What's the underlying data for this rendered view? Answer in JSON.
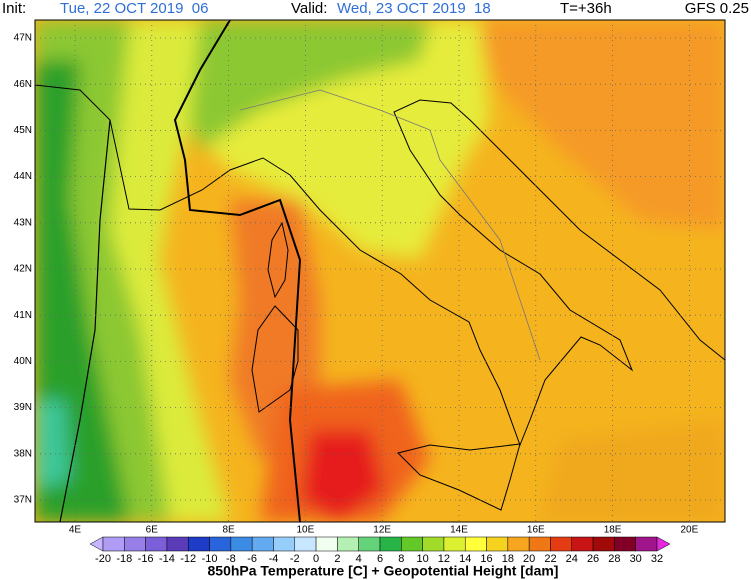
{
  "header": {
    "init_label": "Init:",
    "init_time": "Tue, 22 OCT 2019  06",
    "valid_label": "Valid:",
    "valid_time": "Wed, 23 OCT 2019  18",
    "lead": "T=+36h",
    "model": "GFS 0.25"
  },
  "map": {
    "lat_ticks": [
      {
        "value": 47,
        "label": "47N"
      },
      {
        "value": 46,
        "label": "46N"
      },
      {
        "value": 45,
        "label": "45N"
      },
      {
        "value": 44,
        "label": "44N"
      },
      {
        "value": 43,
        "label": "43N"
      },
      {
        "value": 42,
        "label": "42N"
      },
      {
        "value": 41,
        "label": "41N"
      },
      {
        "value": 40,
        "label": "40N"
      },
      {
        "value": 39,
        "label": "39N"
      },
      {
        "value": 38,
        "label": "38N"
      },
      {
        "value": 37,
        "label": "37N"
      }
    ],
    "lon_ticks": [
      {
        "value": 4,
        "label": "4E"
      },
      {
        "value": 6,
        "label": "6E"
      },
      {
        "value": 8,
        "label": "8E"
      },
      {
        "value": 10,
        "label": "10E"
      },
      {
        "value": 12,
        "label": "12E"
      },
      {
        "value": 14,
        "label": "14E"
      },
      {
        "value": 16,
        "label": "16E"
      },
      {
        "value": 18,
        "label": "18E"
      },
      {
        "value": 20,
        "label": "20E"
      }
    ]
  },
  "colorbar": {
    "ticks": [
      -20,
      -18,
      -16,
      -14,
      -12,
      -10,
      -8,
      -6,
      -4,
      -2,
      0,
      2,
      4,
      6,
      8,
      10,
      12,
      14,
      16,
      18,
      20,
      22,
      24,
      26,
      28,
      30,
      32
    ],
    "colors": [
      "#c8b4ff",
      "#b09cf5",
      "#9680e8",
      "#7a5fd8",
      "#5a3cb8",
      "#1e3cc8",
      "#2a64dc",
      "#3c8ce6",
      "#64aaf0",
      "#96cdfa",
      "#c8e6ff",
      "#f0fff0",
      "#b4f0b4",
      "#64d278",
      "#28b446",
      "#64c828",
      "#a0dc28",
      "#dcf032",
      "#ffff3c",
      "#f5d21e",
      "#f5a51e",
      "#f07814",
      "#e63c14",
      "#c81414",
      "#a00a0a",
      "#820028",
      "#a0148c",
      "#e628dc"
    ],
    "caption": "850hPa Temperature [C] + Geopotential Height [dam]"
  }
}
